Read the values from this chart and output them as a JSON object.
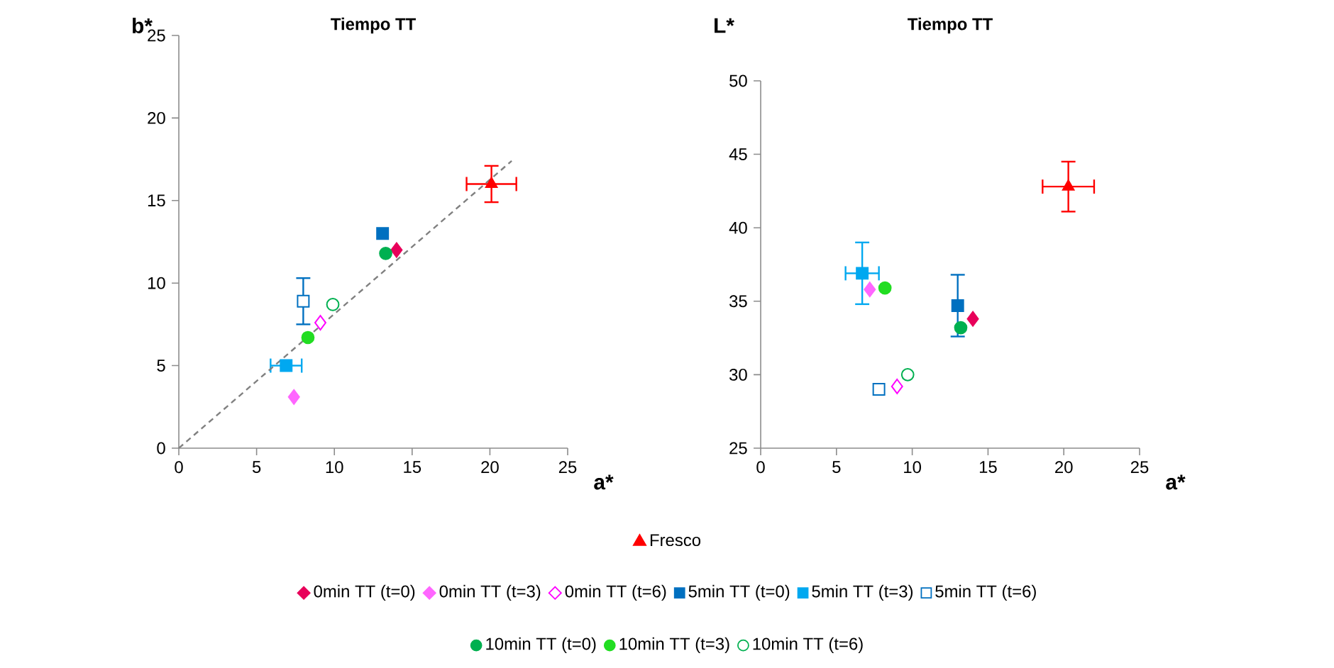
{
  "chart_data": [
    {
      "type": "scatter",
      "title": "Tiempo TT",
      "xlabel": "a*",
      "ylabel": "b*",
      "xlim": [
        0,
        25
      ],
      "ylim": [
        0,
        25
      ],
      "xticks": [
        0,
        5,
        10,
        15,
        20,
        25
      ],
      "yticks": [
        0,
        5,
        10,
        15,
        20,
        25
      ],
      "grid": false,
      "legend": "bottom",
      "series": [
        {
          "name": "Fresco",
          "color": "#ff0000",
          "marker": "triangle",
          "x": [
            20.1
          ],
          "values": [
            16.0
          ],
          "errors": [
            1.1
          ],
          "xerrors": [
            1.6
          ]
        },
        {
          "name": "0min TT (t=0)",
          "color": "#e8005a",
          "marker": "diamond",
          "x": [
            14.0
          ],
          "values": [
            12.0
          ]
        },
        {
          "name": "0min TT (t=3)",
          "color": "#ff66ff",
          "marker": "diamond",
          "x": [
            7.4
          ],
          "values": [
            3.1
          ]
        },
        {
          "name": "0min TT (t=6)",
          "color": "#ff00ff",
          "marker": "diamond-open",
          "x": [
            9.1
          ],
          "values": [
            7.6
          ]
        },
        {
          "name": "5min TT (t=0)",
          "color": "#0070c0",
          "marker": "square",
          "x": [
            13.1
          ],
          "values": [
            13.0
          ]
        },
        {
          "name": "5min TT (t=3)",
          "color": "#00a8f0",
          "marker": "square",
          "x": [
            6.9
          ],
          "values": [
            5.0
          ],
          "xerrors": [
            1.0
          ]
        },
        {
          "name": "5min TT (t=6)",
          "color": "#0070c0",
          "marker": "square-open",
          "x": [
            8.0
          ],
          "values": [
            8.9
          ],
          "errors": [
            1.4
          ]
        },
        {
          "name": "10min TT (t=0)",
          "color": "#00b050",
          "marker": "circle",
          "x": [
            13.3
          ],
          "values": [
            11.8
          ]
        },
        {
          "name": "10min TT (t=3)",
          "color": "#22dd22",
          "marker": "circle",
          "x": [
            8.3
          ],
          "values": [
            6.7
          ]
        },
        {
          "name": "10min TT (t=6)",
          "color": "#00b050",
          "marker": "circle-open",
          "x": [
            9.9
          ],
          "values": [
            8.7
          ]
        },
        {
          "type": "line",
          "color": "#808080",
          "line_style": "dashed",
          "marker": "none",
          "x": [
            0,
            21.4
          ],
          "values": [
            0,
            17.4
          ]
        }
      ]
    },
    {
      "type": "scatter",
      "title": "Tiempo TT",
      "xlabel": "a*",
      "ylabel": "L*",
      "xlim": [
        0,
        25
      ],
      "ylim": [
        25,
        50
      ],
      "xticks": [
        0,
        5,
        10,
        15,
        20,
        25
      ],
      "yticks": [
        25,
        30,
        35,
        40,
        45,
        50
      ],
      "grid": false,
      "series": [
        {
          "color": "#ff0000",
          "marker": "triangle",
          "x": [
            20.3
          ],
          "values": [
            42.8
          ],
          "errors": [
            1.7
          ],
          "xerrors": [
            1.7
          ]
        },
        {
          "color": "#e8005a",
          "marker": "diamond",
          "x": [
            14.0
          ],
          "values": [
            33.8
          ]
        },
        {
          "color": "#ff66ff",
          "marker": "diamond",
          "x": [
            7.2
          ],
          "values": [
            35.8
          ]
        },
        {
          "color": "#ff00ff",
          "marker": "diamond-open",
          "x": [
            9.0
          ],
          "values": [
            29.2
          ]
        },
        {
          "color": "#0070c0",
          "marker": "square",
          "x": [
            13.0
          ],
          "values": [
            34.7
          ],
          "errors": [
            2.1
          ]
        },
        {
          "color": "#00a8f0",
          "marker": "square",
          "x": [
            6.7
          ],
          "values": [
            36.9
          ],
          "errors": [
            2.1
          ],
          "xerrors": [
            1.1
          ]
        },
        {
          "color": "#0070c0",
          "marker": "square-open",
          "x": [
            7.8
          ],
          "values": [
            29.0
          ]
        },
        {
          "color": "#00b050",
          "marker": "circle",
          "x": [
            13.2
          ],
          "values": [
            33.2
          ]
        },
        {
          "color": "#22dd22",
          "marker": "circle",
          "x": [
            8.2
          ],
          "values": [
            35.9
          ]
        },
        {
          "color": "#00b050",
          "marker": "circle-open",
          "x": [
            9.7
          ],
          "values": [
            30.0
          ]
        }
      ]
    }
  ]
}
